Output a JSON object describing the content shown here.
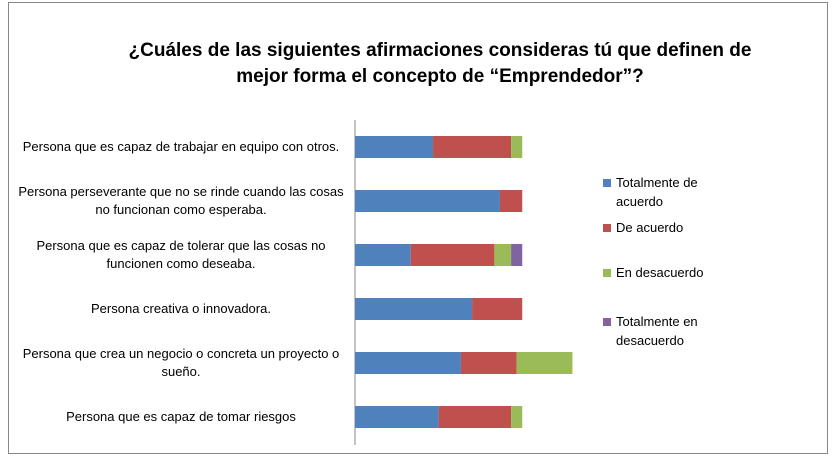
{
  "chart_data": {
    "type": "stacked-bar-horizontal",
    "title": "¿Cuáles de las siguientes afirmaciones consideras tú que definen de mejor forma el concepto de “Emprendedor”?",
    "categories": [
      "Persona que es capaz de trabajar en equipo con otros.",
      "Persona perseverante que no se rinde cuando las cosas no funcionan como esperaba.",
      "Persona que es capaz de tolerar que las cosas no funcionen como deseaba.",
      "Persona creativa o innovadora.",
      "Persona que crea un negocio o concreta un proyecto o sueño.",
      "Persona que es capaz de tomar riesgos"
    ],
    "series": [
      {
        "name": "Totalmente de acuerdo",
        "color": "#4f81bd",
        "values": [
          14,
          26,
          10,
          21,
          19,
          15
        ]
      },
      {
        "name": "De acuerdo",
        "color": "#c0504d",
        "values": [
          14,
          4,
          15,
          9,
          10,
          13
        ]
      },
      {
        "name": "En desacuerdo",
        "color": "#9bbb59",
        "values": [
          2,
          0,
          3,
          0,
          10,
          2
        ]
      },
      {
        "name": "Totalmente en desacuerdo",
        "color": "#8064a2",
        "values": [
          0,
          0,
          2,
          0,
          0,
          0
        ]
      }
    ],
    "xlim": [
      0,
      40
    ]
  }
}
